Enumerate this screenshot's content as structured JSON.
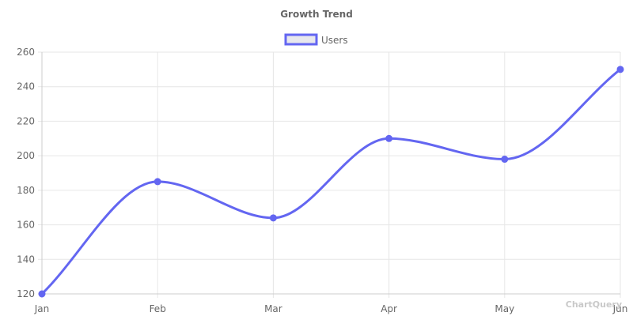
{
  "chart_data": {
    "type": "line",
    "title": "Growth Trend",
    "categories": [
      "Jan",
      "Feb",
      "Mar",
      "Apr",
      "May",
      "Jun"
    ],
    "series": [
      {
        "name": "Users",
        "values": [
          120,
          185,
          164,
          210,
          198,
          250
        ],
        "color": "#6366f1",
        "fill": "#e8e8ed"
      }
    ],
    "ylim": [
      120,
      260
    ],
    "yticks": [
      "260",
      "240",
      "220",
      "200",
      "180",
      "160",
      "140",
      "120"
    ],
    "grid": true,
    "legend_position": "top",
    "curve": "smooth"
  },
  "watermark": "ChartQuery",
  "colors": {
    "grid": "#e6e6e6",
    "axis": "#cccccc",
    "text": "#666666"
  }
}
